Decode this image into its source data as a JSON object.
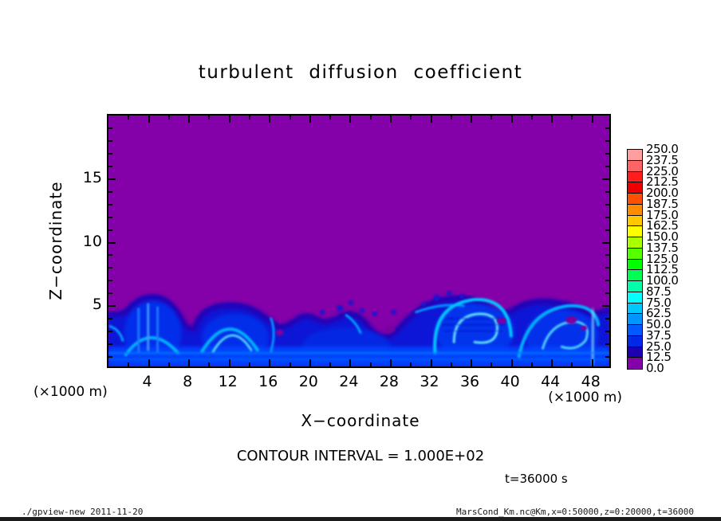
{
  "chart_data": {
    "type": "heatmap",
    "title": "turbulent diffusion coefficient",
    "xlabel": "X−coordinate",
    "ylabel": "Z−coordinate",
    "x_unit_note": "(×1000 m)",
    "xlim": [
      0,
      50
    ],
    "zlim": [
      0,
      20
    ],
    "x_major_ticks": [
      4,
      8,
      12,
      16,
      20,
      24,
      28,
      32,
      36,
      40,
      44,
      48
    ],
    "x_minor_step": 2,
    "z_major_ticks": [
      5,
      10,
      15
    ],
    "z_minor_step": 1,
    "contour_note": "CONTOUR INTERVAL = 1.000E+02",
    "time_label": "t=36000 s",
    "field_notes": "field mostly 0–12.5 (purple) above z≈5×1000 m; turbulent convective layer below with values ≈12.5–100 (blue–cyan eddies and filaments)",
    "colorbar": {
      "min": 0.0,
      "max": 250.0,
      "step": 12.5,
      "labels_top_down": [
        "250.0",
        "237.5",
        "225.0",
        "212.5",
        "200.0",
        "187.5",
        "175.0",
        "162.5",
        "150.0",
        "137.5",
        "125.0",
        "112.5",
        "100.0",
        "87.5",
        "75.0",
        "62.5",
        "50.0",
        "37.5",
        "25.0",
        "12.5",
        "0.0"
      ],
      "colors_top_down": [
        "#ff9e9e",
        "#ff6464",
        "#ff1e1e",
        "#ee0000",
        "#ff5000",
        "#ff8c00",
        "#ffc800",
        "#ffff00",
        "#aaff00",
        "#55ff00",
        "#00ff00",
        "#00ff55",
        "#00ffaa",
        "#00ffff",
        "#00c8ff",
        "#0096ff",
        "#005aff",
        "#0028e6",
        "#1e00b4",
        "#8400a8"
      ],
      "field_background_color": "#8400a8"
    }
  },
  "footer": {
    "left": "./gpview-new  2011-11-20",
    "right": "MarsCond_Km.nc@Km,x=0:50000,z=0:20000,t=36000"
  }
}
